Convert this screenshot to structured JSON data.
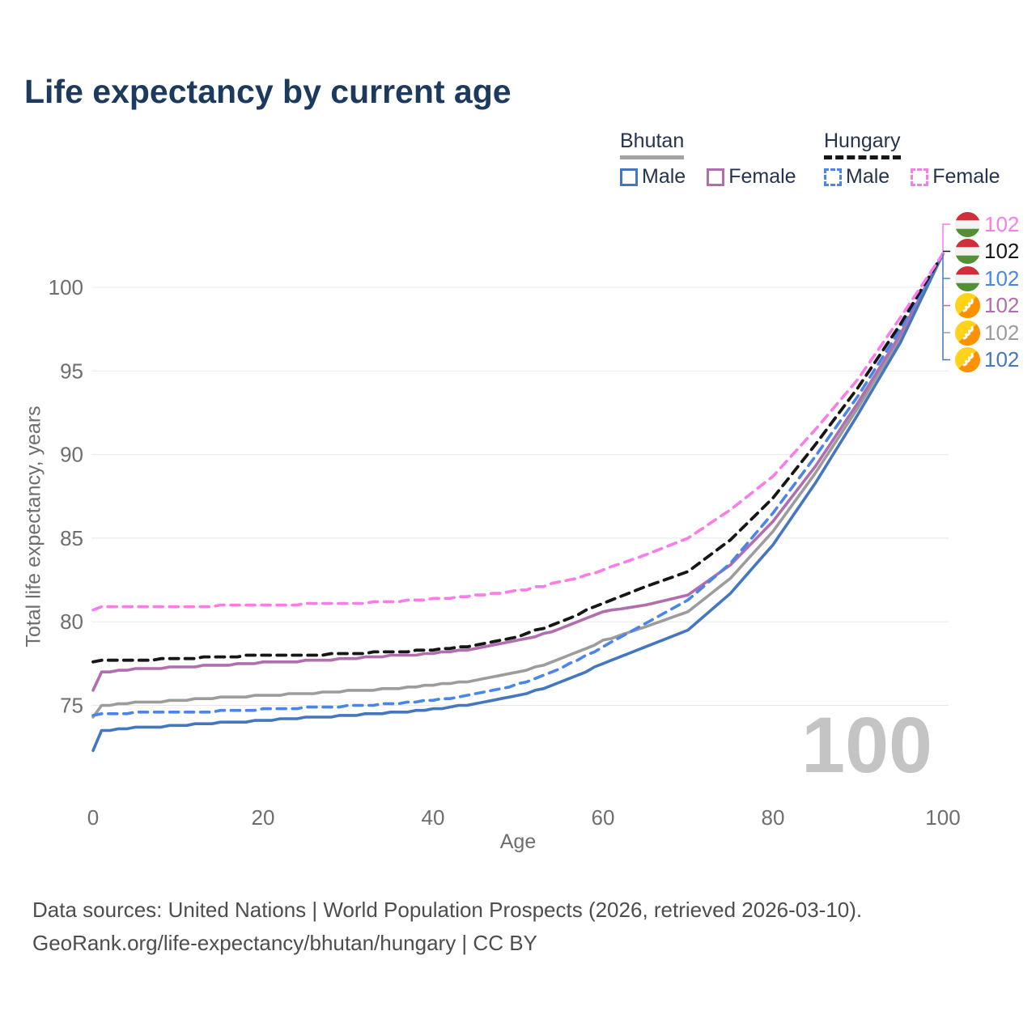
{
  "title": "Life expectancy by current age",
  "legend": {
    "bhutan": {
      "name": "Bhutan",
      "male_label": "Male",
      "female_label": "Female",
      "line_color": "#a3a3a3",
      "line_style": "solid",
      "male_color": "#4577be",
      "female_color": "#b16dae"
    },
    "hungary": {
      "name": "Hungary",
      "male_label": "Male",
      "female_label": "Female",
      "line_color": "#161616",
      "line_style": "dashed",
      "male_color": "#4a86e8",
      "female_color": "#f97ce9"
    }
  },
  "watermark": "100",
  "footer": {
    "line1": "Data sources: United Nations | World Population Prospects (2026, retrieved 2026-03-10).",
    "line2": "GeoRank.org/life-expectancy/bhutan/hungary | CC BY"
  },
  "chart_data": {
    "type": "line",
    "title": "Life expectancy by current age",
    "xlabel": "Age",
    "ylabel": "Total life expectancy, years",
    "xlim": [
      0,
      100
    ],
    "ylim": [
      71.5,
      103.5
    ],
    "x_ticks": [
      0,
      20,
      40,
      60,
      80,
      100
    ],
    "y_ticks": [
      75,
      80,
      85,
      90,
      95,
      100
    ],
    "grid": "horizontal-only",
    "legend_position": "top-right",
    "ages": [
      0,
      1,
      5,
      10,
      15,
      20,
      25,
      30,
      35,
      40,
      45,
      50,
      55,
      60,
      65,
      70,
      75,
      80,
      85,
      90,
      95,
      100
    ],
    "series": [
      {
        "name": "Bhutan",
        "sex": "both",
        "color": "#9c9c9c",
        "dashed": false,
        "values": [
          74.25,
          75.0,
          75.15,
          75.3,
          75.45,
          75.6,
          75.7,
          75.85,
          76.0,
          76.2,
          76.5,
          76.95,
          77.75,
          78.85,
          79.7,
          80.6,
          82.6,
          85.4,
          88.9,
          92.8,
          97.0,
          102
        ]
      },
      {
        "name": "Bhutan Female",
        "sex": "female",
        "color": "#b16dae",
        "dashed": false,
        "values": [
          75.9,
          77.0,
          77.15,
          77.3,
          77.4,
          77.55,
          77.65,
          77.8,
          77.95,
          78.1,
          78.4,
          78.85,
          79.6,
          80.6,
          81.0,
          81.6,
          83.4,
          86.0,
          89.3,
          93.1,
          97.2,
          102
        ]
      },
      {
        "name": "Bhutan Male",
        "sex": "male",
        "color": "#4577be",
        "dashed": false,
        "values": [
          72.3,
          73.5,
          73.65,
          73.8,
          73.95,
          74.1,
          74.25,
          74.4,
          74.55,
          74.75,
          75.1,
          75.55,
          76.35,
          77.5,
          78.5,
          79.5,
          81.7,
          84.6,
          88.3,
          92.4,
          96.7,
          102
        ]
      },
      {
        "name": "Hungary Male",
        "sex": "male",
        "color": "#4a86e8",
        "dashed": true,
        "values": [
          74.4,
          74.5,
          74.55,
          74.6,
          74.65,
          74.75,
          74.85,
          74.95,
          75.1,
          75.3,
          75.65,
          76.25,
          77.2,
          78.5,
          79.9,
          81.3,
          83.5,
          86.5,
          89.9,
          93.5,
          97.5,
          102
        ]
      },
      {
        "name": "Hungary",
        "sex": "both",
        "color": "#161616",
        "dashed": true,
        "values": [
          77.55,
          77.65,
          77.7,
          77.8,
          77.9,
          78.0,
          78.0,
          78.1,
          78.2,
          78.3,
          78.6,
          79.1,
          80.0,
          81.1,
          82.1,
          83.0,
          84.9,
          87.4,
          90.6,
          94.0,
          97.8,
          102
        ]
      },
      {
        "name": "Hungary Female",
        "sex": "female",
        "color": "#f97ce9",
        "dashed": true,
        "values": [
          80.7,
          80.85,
          80.9,
          80.9,
          80.95,
          81.0,
          81.05,
          81.1,
          81.2,
          81.35,
          81.55,
          81.85,
          82.35,
          83.1,
          84.0,
          85.0,
          86.7,
          88.7,
          91.5,
          94.5,
          98.2,
          102
        ]
      }
    ],
    "end_value_age": 100,
    "end_labels": [
      {
        "series": "Hungary Female",
        "flag": "hungary",
        "value": "102",
        "color": "#f97ce9"
      },
      {
        "series": "Hungary",
        "flag": "hungary",
        "value": "102",
        "color": "#161616"
      },
      {
        "series": "Hungary Male",
        "flag": "hungary",
        "value": "102",
        "color": "#4a86e8"
      },
      {
        "series": "Bhutan Female",
        "flag": "bhutan",
        "value": "102",
        "color": "#b16dae"
      },
      {
        "series": "Bhutan",
        "flag": "bhutan",
        "value": "102",
        "color": "#9c9c9c"
      },
      {
        "series": "Bhutan Male",
        "flag": "bhutan",
        "value": "102",
        "color": "#4577be"
      }
    ]
  }
}
